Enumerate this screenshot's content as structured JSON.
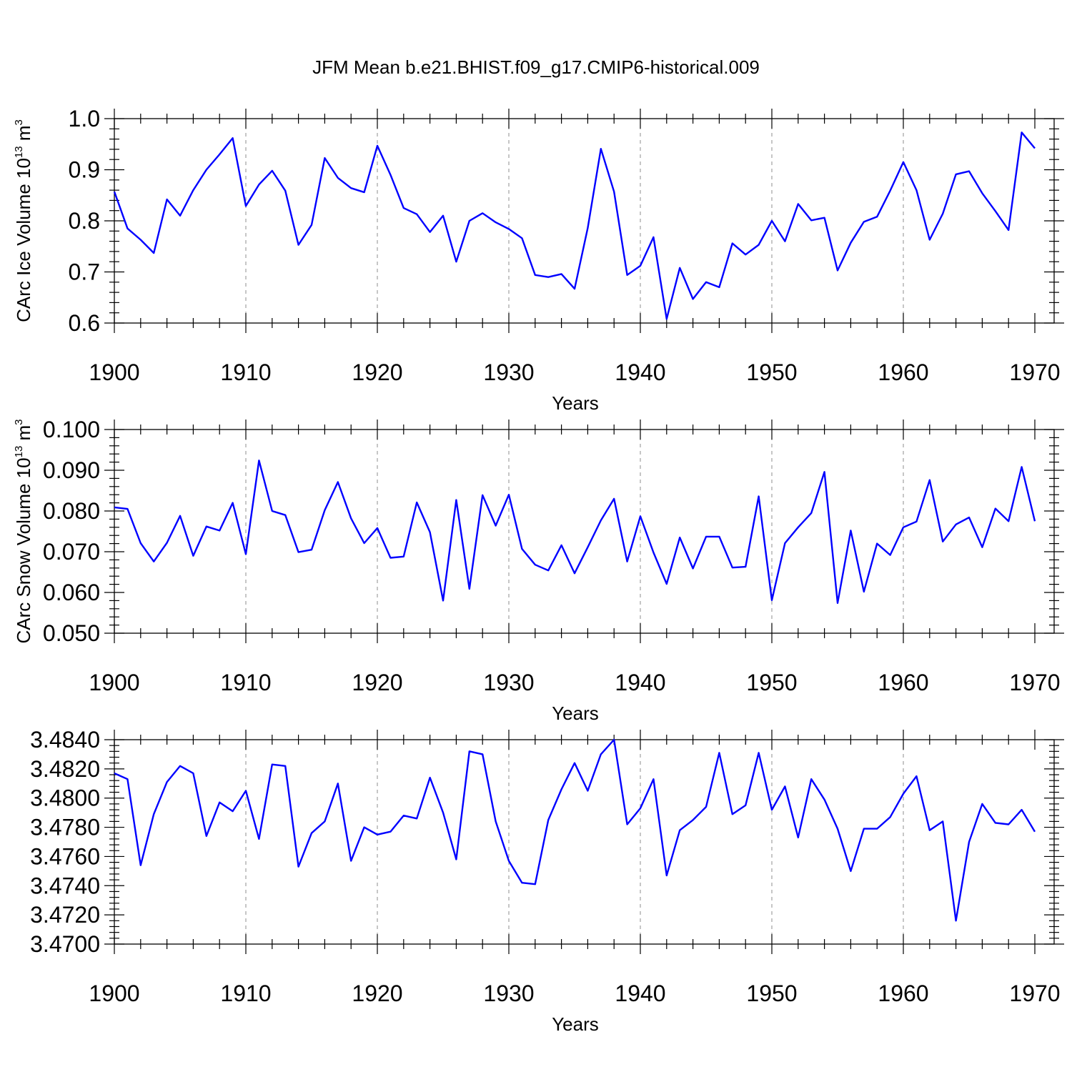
{
  "chart_data": [
    {
      "type": "line",
      "title": "JFM Mean b.e21.BHIST.f09_g17.CMIP6-historical.009",
      "xlabel": "Years",
      "ylabel": "CArc Ice Volume 10",
      "ylabel_exponent": "13",
      "ylabel_unit": " m",
      "ylabel_unit_exponent": "3",
      "xlim": [
        1900,
        1970
      ],
      "ylim": [
        0.6,
        1.0
      ],
      "xticks": [
        1900,
        1910,
        1920,
        1930,
        1940,
        1950,
        1960,
        1970
      ],
      "xtick_labels": [
        "1900",
        "1910",
        "1920",
        "1930",
        "1940",
        "1950",
        "1960",
        "1970"
      ],
      "yticks": [
        0.6,
        0.7,
        0.8,
        0.9,
        1.0
      ],
      "ytick_labels": [
        "0.6",
        "0.7",
        "0.8",
        "0.9",
        "1.0"
      ],
      "grid": "vertical dashed at decades",
      "color": "#0000ff",
      "x": [
        1900,
        1901,
        1902,
        1903,
        1904,
        1905,
        1906,
        1907,
        1908,
        1909,
        1910,
        1911,
        1912,
        1913,
        1914,
        1915,
        1916,
        1917,
        1918,
        1919,
        1920,
        1921,
        1922,
        1923,
        1924,
        1925,
        1926,
        1927,
        1928,
        1929,
        1930,
        1931,
        1932,
        1933,
        1934,
        1935,
        1936,
        1937,
        1938,
        1939,
        1940,
        1941,
        1942,
        1943,
        1944,
        1945,
        1946,
        1947,
        1948,
        1949,
        1950,
        1951,
        1952,
        1953,
        1954,
        1955,
        1956,
        1957,
        1958,
        1959,
        1960,
        1961,
        1962,
        1963,
        1964,
        1965,
        1966,
        1967,
        1968,
        1969,
        1970
      ],
      "y": [
        0.857,
        0.785,
        0.763,
        0.737,
        0.842,
        0.81,
        0.86,
        0.9,
        0.93,
        0.962,
        0.829,
        0.871,
        0.898,
        0.859,
        0.753,
        0.792,
        0.923,
        0.884,
        0.864,
        0.856,
        0.947,
        0.89,
        0.825,
        0.813,
        0.778,
        0.81,
        0.72,
        0.8,
        0.815,
        0.797,
        0.784,
        0.766,
        0.694,
        0.69,
        0.696,
        0.667,
        0.786,
        0.941,
        0.857,
        0.694,
        0.712,
        0.768,
        0.608,
        0.708,
        0.647,
        0.68,
        0.67,
        0.756,
        0.734,
        0.753,
        0.8,
        0.76,
        0.833,
        0.801,
        0.806,
        0.703,
        0.757,
        0.798,
        0.808,
        0.859,
        0.915,
        0.86,
        0.763,
        0.814,
        0.891,
        0.897,
        0.854,
        0.819,
        0.782,
        0.973,
        0.942
      ]
    },
    {
      "type": "line",
      "xlabel": "Years",
      "ylabel": "CArc Snow Volume 10",
      "ylabel_exponent": "13",
      "ylabel_unit": " m",
      "ylabel_unit_exponent": "3",
      "xlim": [
        1900,
        1970
      ],
      "ylim": [
        0.05,
        0.1
      ],
      "xticks": [
        1900,
        1910,
        1920,
        1930,
        1940,
        1950,
        1960,
        1970
      ],
      "xtick_labels": [
        "1900",
        "1910",
        "1920",
        "1930",
        "1940",
        "1950",
        "1960",
        "1970"
      ],
      "yticks": [
        0.05,
        0.06,
        0.07,
        0.08,
        0.09,
        0.1
      ],
      "ytick_labels": [
        "0.050",
        "0.060",
        "0.070",
        "0.080",
        "0.090",
        "0.100"
      ],
      "grid": "vertical dashed at decades",
      "color": "#0000ff",
      "x": [
        1900,
        1901,
        1902,
        1903,
        1904,
        1905,
        1906,
        1907,
        1908,
        1909,
        1910,
        1911,
        1912,
        1913,
        1914,
        1915,
        1916,
        1917,
        1918,
        1919,
        1920,
        1921,
        1922,
        1923,
        1924,
        1925,
        1926,
        1927,
        1928,
        1929,
        1930,
        1931,
        1932,
        1933,
        1934,
        1935,
        1936,
        1937,
        1938,
        1939,
        1940,
        1941,
        1942,
        1943,
        1944,
        1945,
        1946,
        1947,
        1948,
        1949,
        1950,
        1951,
        1952,
        1953,
        1954,
        1955,
        1956,
        1957,
        1958,
        1959,
        1960,
        1961,
        1962,
        1963,
        1964,
        1965,
        1966,
        1967,
        1968,
        1969,
        1970
      ],
      "y": [
        0.0809,
        0.0805,
        0.0721,
        0.0676,
        0.0722,
        0.0788,
        0.069,
        0.0762,
        0.0752,
        0.082,
        0.0694,
        0.0924,
        0.08,
        0.079,
        0.0699,
        0.0705,
        0.0802,
        0.0871,
        0.0782,
        0.0721,
        0.0758,
        0.0685,
        0.0688,
        0.0821,
        0.0748,
        0.058,
        0.0827,
        0.0609,
        0.0839,
        0.0764,
        0.084,
        0.0707,
        0.0668,
        0.0654,
        0.0716,
        0.0647,
        0.0711,
        0.0777,
        0.083,
        0.0676,
        0.0787,
        0.0698,
        0.0621,
        0.0735,
        0.0659,
        0.0737,
        0.0737,
        0.0661,
        0.0663,
        0.0836,
        0.0581,
        0.0721,
        0.076,
        0.0795,
        0.0896,
        0.0574,
        0.0752,
        0.0602,
        0.072,
        0.0692,
        0.076,
        0.0774,
        0.0876,
        0.0725,
        0.0767,
        0.0784,
        0.0711,
        0.0806,
        0.0775,
        0.0908,
        0.0775
      ]
    },
    {
      "type": "line",
      "xlabel": "Years",
      "ylabel": "",
      "xlim": [
        1900,
        1970
      ],
      "ylim": [
        3.47,
        3.484
      ],
      "xticks": [
        1900,
        1910,
        1920,
        1930,
        1940,
        1950,
        1960,
        1970
      ],
      "xtick_labels": [
        "1900",
        "1910",
        "1920",
        "1930",
        "1940",
        "1950",
        "1960",
        "1970"
      ],
      "yticks": [
        3.47,
        3.472,
        3.474,
        3.476,
        3.478,
        3.48,
        3.482,
        3.484
      ],
      "ytick_labels": [
        "3.4700",
        "3.4720",
        "3.4740",
        "3.4760",
        "3.4780",
        "3.4800",
        "3.4820",
        "3.4840"
      ],
      "grid": "vertical dashed at decades",
      "color": "#0000ff",
      "x": [
        1900,
        1901,
        1902,
        1903,
        1904,
        1905,
        1906,
        1907,
        1908,
        1909,
        1910,
        1911,
        1912,
        1913,
        1914,
        1915,
        1916,
        1917,
        1918,
        1919,
        1920,
        1921,
        1922,
        1923,
        1924,
        1925,
        1926,
        1927,
        1928,
        1929,
        1930,
        1931,
        1932,
        1933,
        1934,
        1935,
        1936,
        1937,
        1938,
        1939,
        1940,
        1941,
        1942,
        1943,
        1944,
        1945,
        1946,
        1947,
        1948,
        1949,
        1950,
        1951,
        1952,
        1953,
        1954,
        1955,
        1956,
        1957,
        1958,
        1959,
        1960,
        1961,
        1962,
        1963,
        1964,
        1965,
        1966,
        1967,
        1968,
        1969,
        1970
      ],
      "y": [
        3.4817,
        3.4813,
        3.4754,
        3.4789,
        3.4811,
        3.4822,
        3.4817,
        3.4774,
        3.4797,
        3.4791,
        3.4805,
        3.4772,
        3.4823,
        3.4822,
        3.4753,
        3.4776,
        3.4784,
        3.481,
        3.4757,
        3.478,
        3.4775,
        3.4777,
        3.4788,
        3.4786,
        3.4814,
        3.479,
        3.4758,
        3.4832,
        3.483,
        3.4784,
        3.4757,
        3.4742,
        3.4741,
        3.4785,
        3.4806,
        3.4824,
        3.4805,
        3.483,
        3.484,
        3.4782,
        3.4793,
        3.4813,
        3.4747,
        3.4778,
        3.4785,
        3.4794,
        3.4831,
        3.4789,
        3.4795,
        3.4831,
        3.4792,
        3.4808,
        3.4773,
        3.4813,
        3.4799,
        3.4779,
        3.475,
        3.4779,
        3.4779,
        3.4787,
        3.4803,
        3.4815,
        3.4778,
        3.4784,
        3.4716,
        3.477,
        3.4796,
        3.4783,
        3.4782,
        3.4792,
        3.4777
      ]
    }
  ]
}
